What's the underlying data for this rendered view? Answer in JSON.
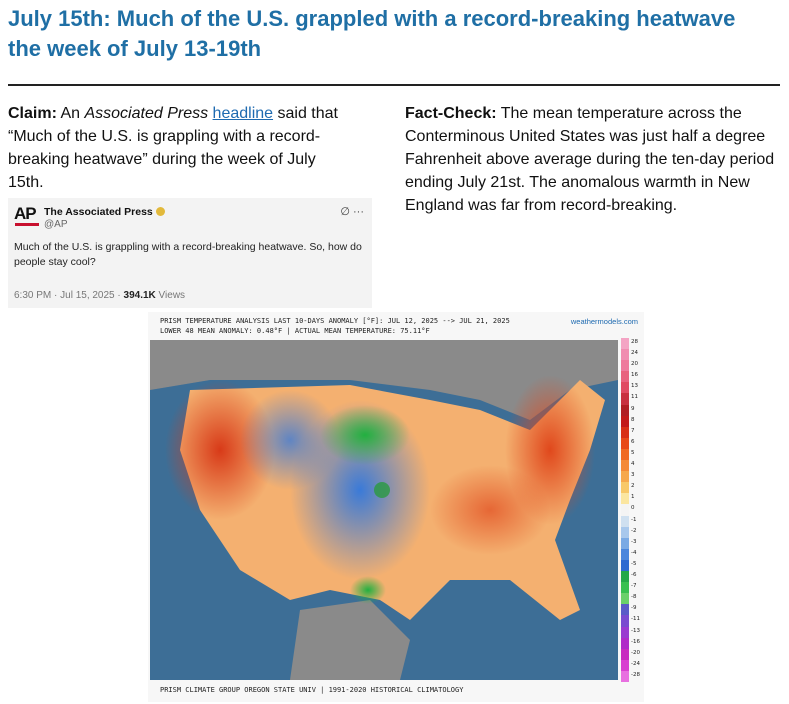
{
  "title": "July 15th: Much of the U.S. grappled with a record-breaking heatwave the week of July 13-19th",
  "claim": {
    "label": "Claim:",
    "pre": " An ",
    "outlet": "Associated Press",
    "space": " ",
    "link_text": "headline",
    "post": " said that “Much of the U.S. is grappling with a record-breaking heatwave” during the week of July 15th."
  },
  "fact_check": {
    "label": "Fact-Check:",
    "text": " The mean temperature across the Conterminous United States was just half a degree Fahrenheit above average during the ten-day period ending July 21st. The anomalous warmth in New England was far from record-breaking."
  },
  "tweet": {
    "logo": "AP",
    "name": "The Associated Press",
    "handle": "@AP",
    "text": "Much of the U.S. is grappling with a record-breaking heatwave. So, how do people stay cool?",
    "time": "6:30 PM · Jul 15, 2025 · ",
    "views_count": "394.1K",
    "views_label": " Views",
    "icons": "∅  ···"
  },
  "map": {
    "header_line1": "PRISM TEMPERATURE ANALYSIS LAST 10-DAYS ANOMALY [°F]: JUL 12, 2025 --> JUL 21, 2025",
    "header_line2": "LOWER 48 MEAN ANOMALY: 0.48°F | ACTUAL MEAN TEMPERATURE: 75.11°F",
    "source": "weathermodels.com",
    "footer": "PRISM CLIMATE GROUP OREGON STATE UNIV | 1991-2020 HISTORICAL CLIMATOLOGY",
    "scale_labels": [
      "28",
      "24",
      "20",
      "16",
      "13",
      "11",
      "9",
      "8",
      "7",
      "6",
      "5",
      "4",
      "3",
      "2",
      "1",
      "0",
      "-1",
      "-2",
      "-3",
      "-4",
      "-5",
      "-6",
      "-7",
      "-8",
      "-9",
      "-11",
      "-13",
      "-16",
      "-20",
      "-24",
      "-28"
    ],
    "scale_colors": [
      "#f4a4c4",
      "#f08cb0",
      "#ee7a9c",
      "#e8627e",
      "#e04a62",
      "#c83040",
      "#b01e24",
      "#c21a1a",
      "#d83016",
      "#e84a18",
      "#f06a24",
      "#f48a36",
      "#f6a84c",
      "#f8c868",
      "#fbe6a0",
      "#f4f4f4",
      "#cfe0f0",
      "#a8c8ec",
      "#7aaae4",
      "#4a86dc",
      "#2e6ad0",
      "#24a848",
      "#38c050",
      "#6ad06a",
      "#5a5ac8",
      "#7a4ad0",
      "#9a3ad0",
      "#b02ac8",
      "#c82ac0",
      "#d840d0",
      "#e870e0"
    ]
  }
}
